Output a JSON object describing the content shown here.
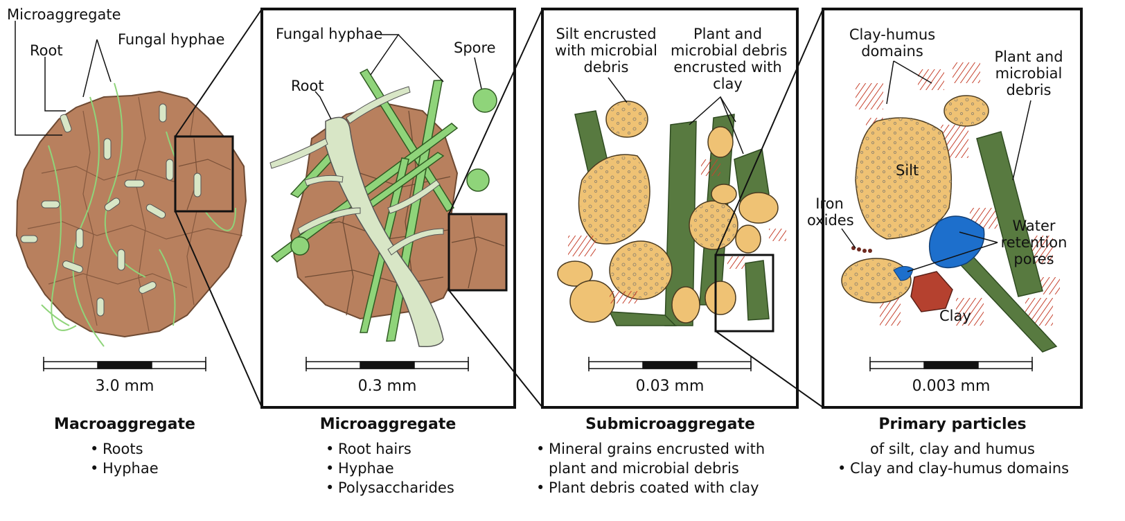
{
  "panels": [
    {
      "id": "macro",
      "scale": "3.0 mm",
      "title": "Macroaggregate",
      "bullets": [
        "Roots",
        "Hyphae"
      ],
      "labels": {
        "microaggregate": "Microaggregate",
        "root": "Root",
        "fungal_hyphae": "Fungal hyphae"
      }
    },
    {
      "id": "micro",
      "scale": "0.3 mm",
      "title": "Microaggregate",
      "bullets": [
        "Root hairs",
        "Hyphae",
        "Polysaccharides"
      ],
      "labels": {
        "fungal_hyphae": "Fungal hyphae",
        "root": "Root",
        "spore": "Spore"
      }
    },
    {
      "id": "submicro",
      "scale": "0.03 mm",
      "title": "Submicroaggregate",
      "bullets": [
        "Mineral grains encrusted with plant and microbial debris",
        "Plant debris coated with clay"
      ],
      "labels": {
        "silt": [
          "Silt encrusted",
          "with microbial",
          "debris"
        ],
        "plant": [
          "Plant and",
          "microbial debris",
          "encrusted with",
          "clay"
        ]
      }
    },
    {
      "id": "primary",
      "scale": "0.003 mm",
      "title": "Primary particles",
      "subtitle": "of silt, clay and humus",
      "bullets": [
        "Clay and clay-humus domains"
      ],
      "labels": {
        "clay_humus": [
          "Clay-humus",
          "domains"
        ],
        "plant": [
          "Plant and",
          "microbial",
          "debris"
        ],
        "silt": "Silt",
        "iron": [
          "Iron",
          "oxides"
        ],
        "water": [
          "Water",
          "retention",
          "pores"
        ],
        "clay": "Clay"
      }
    }
  ],
  "colors": {
    "aggregate": "#b8805e",
    "hyphae": "#8fd47a",
    "root": "#d8e6c6",
    "silt": "#efc274",
    "plant_debris": "#587a40",
    "clay": "#b5412f",
    "water": "#1d6fcc",
    "clay_humus": "#c6432f",
    "outline": "#222222"
  }
}
